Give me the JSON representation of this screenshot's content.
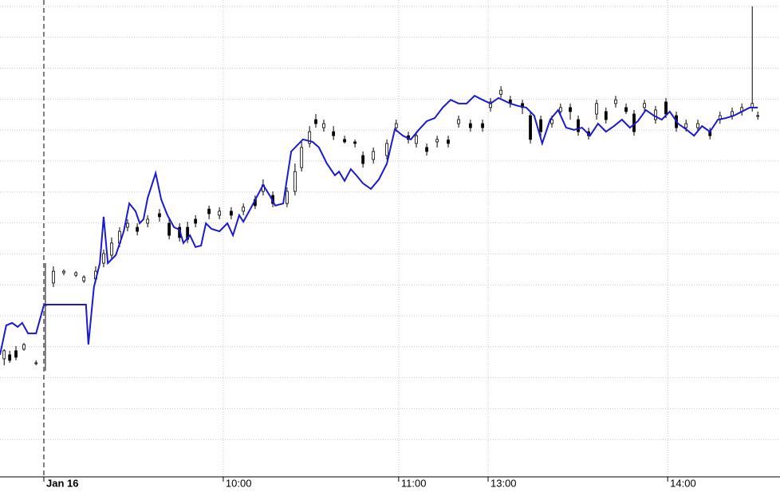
{
  "chart_data": {
    "type": "candlestick",
    "xlim": [
      0,
      225
    ],
    "ylim": [
      0,
      150
    ],
    "xticks": [
      {
        "value": 12.65,
        "label": "Jan 16"
      },
      {
        "value": 64.4,
        "label": "10:00"
      },
      {
        "value": 115.0,
        "label": "11:00"
      },
      {
        "value": 140.8,
        "label": "13:00"
      },
      {
        "value": 192.6,
        "label": "14:00"
      }
    ],
    "ygrid": [
      10,
      20,
      30,
      40,
      50,
      60,
      70,
      80,
      90,
      100,
      110,
      120,
      130,
      140,
      150
    ],
    "grid": true,
    "candles": {
      "up_color": "#ffffff",
      "down_color": "#000000",
      "x": [
        1.2,
        2.8,
        4.6,
        6.9,
        10.4,
        13.1,
        15.4,
        18.4,
        21.9,
        24.2,
        27.6,
        29.9,
        32.2,
        34.5,
        36.8,
        39.6,
        42.6,
        46.0,
        48.8,
        51.8,
        54.1,
        56.4,
        60.3,
        63.3,
        66.7,
        70.2,
        73.6,
        75.9,
        78.7,
        82.8,
        85.1,
        87.0,
        89.3,
        91.1,
        93.4,
        96.2,
        99.4,
        102.4,
        104.7,
        107.7,
        111.6,
        114.3,
        117.8,
        120.1,
        123.1,
        126.1,
        129.3,
        132.3,
        135.7,
        139.2,
        141.5,
        144.5,
        147.2,
        150.7,
        153.0,
        156.0,
        159.2,
        161.7,
        164.5,
        166.8,
        169.8,
        172.1,
        174.8,
        177.6,
        180.6,
        182.9,
        185.9,
        189.1,
        192.1,
        195.1,
        197.9,
        201.3,
        204.8,
        207.7,
        211.2,
        214.0,
        217.0,
        218.6
      ],
      "open": [
        36.1,
        37.4,
        38.7,
        39.2,
        34.8,
        53.6,
        60.6,
        63.9,
        63.1,
        61.3,
        61.9,
        67.0,
        69.6,
        73.5,
        78.6,
        78.6,
        79.9,
        83.0,
        79.9,
        78.6,
        78.6,
        81.2,
        84.5,
        82.5,
        83.8,
        83.8,
        87.6,
        90.2,
        88.9,
        86.3,
        90.2,
        97.9,
        105.7,
        113.4,
        110.8,
        109.5,
        107.0,
        106.2,
        101.8,
        100.5,
        101.8,
        110.8,
        108.2,
        105.7,
        104.4,
        106.2,
        106.8,
        112.1,
        112.1,
        112.1,
        117.3,
        121.6,
        119.8,
        118.6,
        114.7,
        113.4,
        112.1,
        116.0,
        117.3,
        113.4,
        109.5,
        115.2,
        116.0,
        118.6,
        117.3,
        115.2,
        117.3,
        113.4,
        119.1,
        114.7,
        110.8,
        110.8,
        109.5,
        113.4,
        114.7,
        116.0,
        117.3,
        114.7
      ],
      "high": [
        39.2,
        38.7,
        40.2,
        41.2,
        35.6,
        67.0,
        66.0,
        65.0,
        64.4,
        63.1,
        66.0,
        71.4,
        75.3,
        78.6,
        81.2,
        79.9,
        82.5,
        84.5,
        81.2,
        79.9,
        80.4,
        82.5,
        85.6,
        85.1,
        85.1,
        86.3,
        88.9,
        94.1,
        90.2,
        91.5,
        99.2,
        106.2,
        111.3,
        115.2,
        113.4,
        111.3,
        108.2,
        107.0,
        103.1,
        104.4,
        107.0,
        113.4,
        109.5,
        109.5,
        105.7,
        108.2,
        108.2,
        114.7,
        113.4,
        113.4,
        120.4,
        124.2,
        121.1,
        119.8,
        116.0,
        114.7,
        114.7,
        118.6,
        118.6,
        114.7,
        110.8,
        119.8,
        117.3,
        121.1,
        118.6,
        116.5,
        119.8,
        117.8,
        120.4,
        116.0,
        113.4,
        113.4,
        110.8,
        116.0,
        117.3,
        118.6,
        150.0,
        116.0
      ],
      "low": [
        34.0,
        34.8,
        35.6,
        38.7,
        34.0,
        32.2,
        59.3,
        63.1,
        62.5,
        60.6,
        60.6,
        65.7,
        68.3,
        72.2,
        77.3,
        76.0,
        78.6,
        80.4,
        74.7,
        74.0,
        73.5,
        78.6,
        81.2,
        81.2,
        81.2,
        82.5,
        84.5,
        88.9,
        85.1,
        85.1,
        88.9,
        96.6,
        104.4,
        110.8,
        109.5,
        106.8,
        105.7,
        104.4,
        97.9,
        99.2,
        100.5,
        109.5,
        105.7,
        104.4,
        101.8,
        104.4,
        104.4,
        110.8,
        109.5,
        109.5,
        116.0,
        120.4,
        117.3,
        115.2,
        105.7,
        107.0,
        110.8,
        114.7,
        113.4,
        108.2,
        107.0,
        113.4,
        112.1,
        117.3,
        115.2,
        108.2,
        116.0,
        112.1,
        113.9,
        109.5,
        109.5,
        109.5,
        107.0,
        112.1,
        113.4,
        114.7,
        116.0,
        113.4
      ],
      "close": [
        38.7,
        35.6,
        36.6,
        40.7,
        34.8,
        53.6,
        64.4,
        64.4,
        63.9,
        62.5,
        64.4,
        70.1,
        73.5,
        77.3,
        79.9,
        77.3,
        81.2,
        82.0,
        76.0,
        75.3,
        74.7,
        79.9,
        83.0,
        83.8,
        82.5,
        85.1,
        85.6,
        92.3,
        86.3,
        90.2,
        96.6,
        104.4,
        109.5,
        112.1,
        112.1,
        108.2,
        106.2,
        105.7,
        99.2,
        103.1,
        105.7,
        112.1,
        107.0,
        108.2,
        103.1,
        107.0,
        105.7,
        113.4,
        110.8,
        110.8,
        119.1,
        122.9,
        118.6,
        117.3,
        107.0,
        109.5,
        113.4,
        117.3,
        116.0,
        109.5,
        108.2,
        118.6,
        113.4,
        119.8,
        116.0,
        109.5,
        118.6,
        116.5,
        115.2,
        110.8,
        112.1,
        112.1,
        108.2,
        114.7,
        116.0,
        117.3,
        118.6,
        114.7
      ]
    },
    "line": {
      "color": "#1a1ad0",
      "x": [
        0,
        1.8,
        3.5,
        5.1,
        6.4,
        8.1,
        10.4,
        12.7,
        24.8,
        25.5,
        27.1,
        28.8,
        29.9,
        31.1,
        33.4,
        35.7,
        37.3,
        39.1,
        40.3,
        41.4,
        42.6,
        44.9,
        46.5,
        48.3,
        50.2,
        51.8,
        52.9,
        54.8,
        56.4,
        58.0,
        59.4,
        61.0,
        63.3,
        65.6,
        67.2,
        69.0,
        70.2,
        72.5,
        75.9,
        77.8,
        79.4,
        81.7,
        84.0,
        87.4,
        90.2,
        92.0,
        94.3,
        96.6,
        97.8,
        99.4,
        101.2,
        102.8,
        104.7,
        107.0,
        109.3,
        111.6,
        113.9,
        116.2,
        118.5,
        120.8,
        123.1,
        125.4,
        127.7,
        130.0,
        132.3,
        134.6,
        136.9,
        139.2,
        141.5,
        143.8,
        147.2,
        149.5,
        151.8,
        154.1,
        156.4,
        158.7,
        161.0,
        163.3,
        165.6,
        167.9,
        170.2,
        172.5,
        174.8,
        177.1,
        179.4,
        181.7,
        184.0,
        186.3,
        188.6,
        190.9,
        193.2,
        195.6,
        197.9,
        200.2,
        202.5,
        204.8,
        207.1,
        209.4,
        211.7,
        214.0,
        216.3,
        218.6
      ],
      "values": [
        37.4,
        46.9,
        47.7,
        46.4,
        47.7,
        44.3,
        44.3,
        53.6,
        53.6,
        40.7,
        59.3,
        67.0,
        82.0,
        67.0,
        69.6,
        77.3,
        86.3,
        83.8,
        79.9,
        81.2,
        88.1,
        96.1,
        87.6,
        82.5,
        78.6,
        77.8,
        73.5,
        76.0,
        72.2,
        72.7,
        79.9,
        78.1,
        77.3,
        79.9,
        76.0,
        82.5,
        80.4,
        85.1,
        92.3,
        88.9,
        85.6,
        86.3,
        103.1,
        107.0,
        106.2,
        104.4,
        99.2,
        95.4,
        96.6,
        93.6,
        97.4,
        95.4,
        92.8,
        91.0,
        94.1,
        99.2,
        110.3,
        108.2,
        107.0,
        110.1,
        112.9,
        113.9,
        117.3,
        119.8,
        118.6,
        118.6,
        121.1,
        119.8,
        118.6,
        120.4,
        118.6,
        117.8,
        117.3,
        114.7,
        105.7,
        113.4,
        116.5,
        110.8,
        110.1,
        110.8,
        108.2,
        112.1,
        109.5,
        111.3,
        113.4,
        110.8,
        112.9,
        116.5,
        114.7,
        113.4,
        116.0,
        112.1,
        110.3,
        108.2,
        111.3,
        109.5,
        113.4,
        113.9,
        114.7,
        116.0,
        117.3,
        117.3
      ]
    }
  }
}
